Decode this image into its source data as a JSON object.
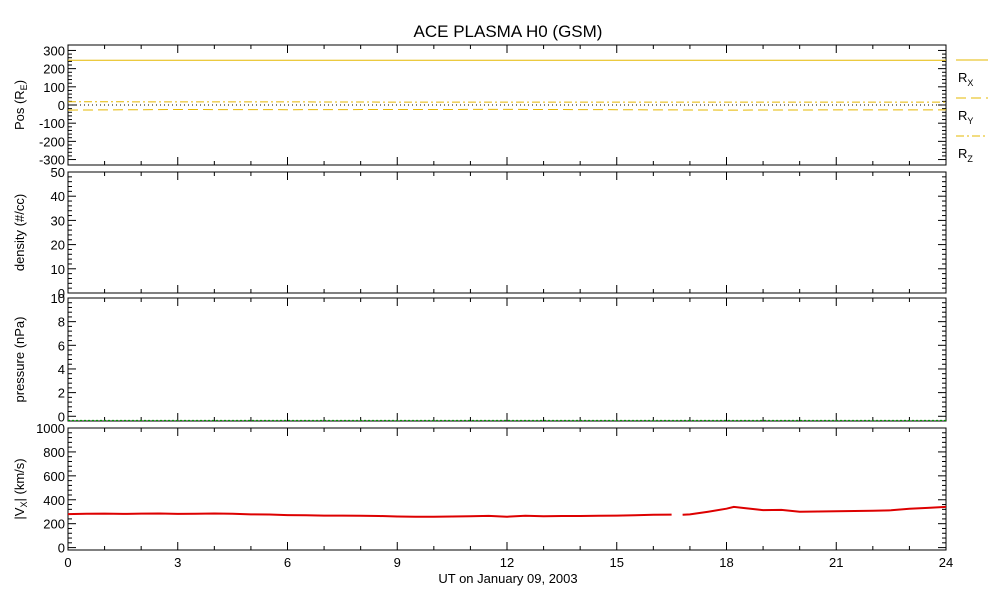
{
  "chart_data": {
    "type": "line",
    "title": "ACE PLASMA H0 (GSM)",
    "xlabel": "UT on January 09, 2003",
    "xlim": [
      0,
      24
    ],
    "xticks": [
      "0",
      "3",
      "6",
      "9",
      "12",
      "15",
      "18",
      "21",
      "24"
    ],
    "panels": [
      {
        "id": "pos",
        "ylabel": "Pos (R",
        "ylabel_sub": "E",
        "ylabel_end": ")",
        "ylim": [
          -330,
          330
        ],
        "yticks": [
          "-300",
          "-200",
          "-100",
          "0",
          "100",
          "200",
          "300"
        ],
        "ytick_values": [
          -300,
          -200,
          -100,
          0,
          100,
          200,
          300
        ],
        "series": [
          {
            "name": "R",
            "name_sub": "X",
            "color": "#e6b800",
            "style": "solid",
            "x": [
              0,
              24
            ],
            "y": [
              246,
              246
            ]
          },
          {
            "name": "R",
            "name_sub": "Y",
            "color": "#e6b800",
            "style": "dashed",
            "x": [
              0,
              3,
              6,
              9,
              12,
              15,
              18,
              21,
              24
            ],
            "y": [
              -28,
              -25,
              -26,
              -25,
              -24,
              -26,
              -28,
              -27,
              -27
            ]
          },
          {
            "name": "R",
            "name_sub": "Z",
            "color": "#e6b800",
            "style": "dashdot",
            "x": [
              0,
              3,
              6,
              9,
              12,
              15,
              18,
              21,
              24
            ],
            "y": [
              18,
              17,
              17,
              16,
              16,
              16,
              16,
              16,
              16
            ]
          }
        ]
      },
      {
        "id": "density",
        "ylabel": "density (#/cc)",
        "ylim": [
          0,
          50
        ],
        "yticks": [
          "0",
          "10",
          "20",
          "30",
          "40",
          "50"
        ],
        "ytick_values": [
          0,
          10,
          20,
          30,
          40,
          50
        ],
        "series": []
      },
      {
        "id": "pressure",
        "ylabel": "pressure (nPa)",
        "ylim": [
          -0.4,
          10
        ],
        "yticks": [
          "0",
          "2",
          "4",
          "6",
          "8",
          "10"
        ],
        "ytick_values": [
          0,
          2,
          4,
          6,
          8,
          10
        ],
        "series": [
          {
            "color": "#00aa00",
            "style": "dotted",
            "x": [
              0,
              24
            ],
            "y": [
              -0.35,
              -0.35
            ]
          }
        ]
      },
      {
        "id": "vx",
        "ylabel": "|V",
        "ylabel_sub": "X",
        "ylabel_end": "| (km/s)",
        "ylim": [
          -20,
          1000
        ],
        "yticks": [
          "0",
          "200",
          "400",
          "600",
          "800",
          "1000"
        ],
        "ytick_values": [
          0,
          200,
          400,
          600,
          800,
          1000
        ],
        "series": [
          {
            "color": "#dd0000",
            "style": "solid",
            "segments": [
              {
                "x": [
                  0,
                  0.5,
                  1,
                  1.5,
                  2,
                  2.5,
                  3,
                  3.5,
                  4,
                  4.5,
                  5,
                  5.5,
                  6,
                  6.5,
                  7,
                  7.5,
                  8,
                  8.5,
                  9,
                  9.5,
                  10,
                  10.5,
                  11,
                  11.5,
                  12,
                  12.5,
                  13,
                  13.5,
                  14,
                  14.5,
                  15,
                  15.5,
                  16,
                  16.5
                ],
                "y": [
                  280,
                  283,
                  284,
                  282,
                  284,
                  285,
                  282,
                  283,
                  285,
                  283,
                  278,
                  277,
                  272,
                  270,
                  268,
                  268,
                  266,
                  264,
                  260,
                  258,
                  258,
                  260,
                  262,
                  265,
                  258,
                  266,
                  262,
                  264,
                  264,
                  266,
                  268,
                  270,
                  274,
                  276
                ]
              },
              {
                "x": [
                  16.8,
                  17,
                  17.5,
                  18,
                  18.2,
                  18.5,
                  19,
                  19.5,
                  20,
                  20.5,
                  21,
                  21.5,
                  22,
                  22.5,
                  23,
                  23.5,
                  24
                ],
                "y": [
                  274,
                  278,
                  300,
                  325,
                  340,
                  330,
                  314,
                  315,
                  300,
                  302,
                  304,
                  306,
                  308,
                  312,
                  325,
                  332,
                  340
                ]
              }
            ]
          }
        ]
      }
    ],
    "legend": [
      {
        "label": "R",
        "sub": "X",
        "style": "solid",
        "color": "#e6b800"
      },
      {
        "label": "R",
        "sub": "Y",
        "style": "dashed",
        "color": "#e6b800"
      },
      {
        "label": "R",
        "sub": "Z",
        "style": "dashdot",
        "color": "#e6b800"
      }
    ]
  }
}
